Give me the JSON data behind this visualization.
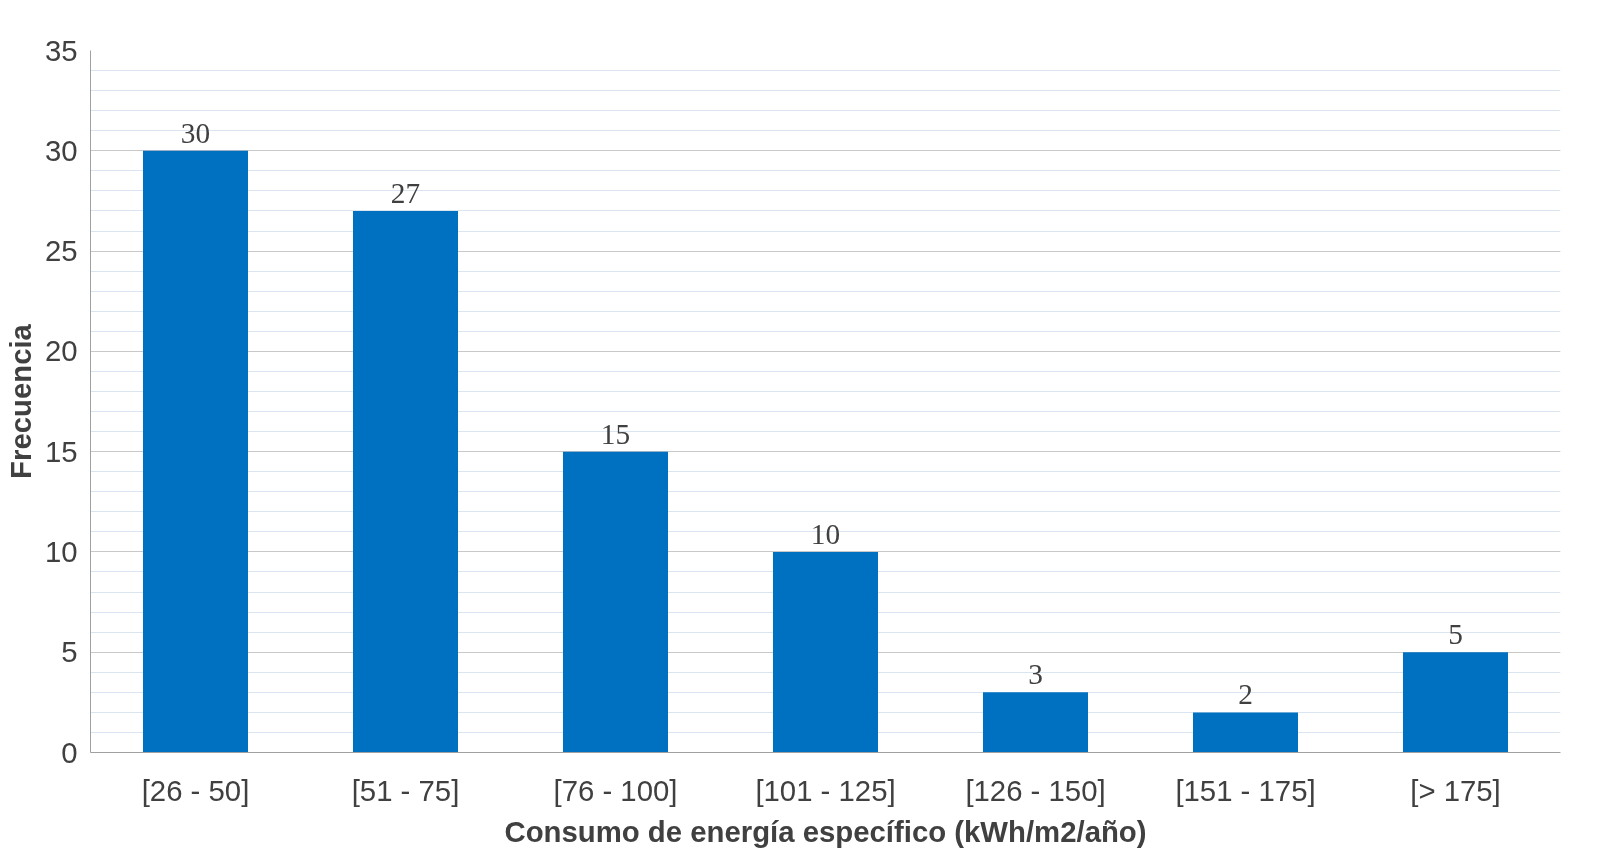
{
  "chart_data": {
    "type": "bar",
    "xlabel": "Consumo de energía específico (kWh/m2/año)",
    "ylabel": "Frecuencia",
    "categories": [
      "[26 - 50]",
      "[51 - 75]",
      "[76 - 100]",
      "[101 - 125]",
      "[126 - 150]",
      "[151 - 175]",
      "[> 175]"
    ],
    "values": [
      30,
      27,
      15,
      10,
      3,
      2,
      5
    ],
    "color": "#0070c0",
    "ylim": [
      0,
      35
    ],
    "yticks": [
      0,
      5,
      10,
      15,
      20,
      25,
      30,
      35
    ],
    "grid": "y",
    "data_labels": true
  }
}
